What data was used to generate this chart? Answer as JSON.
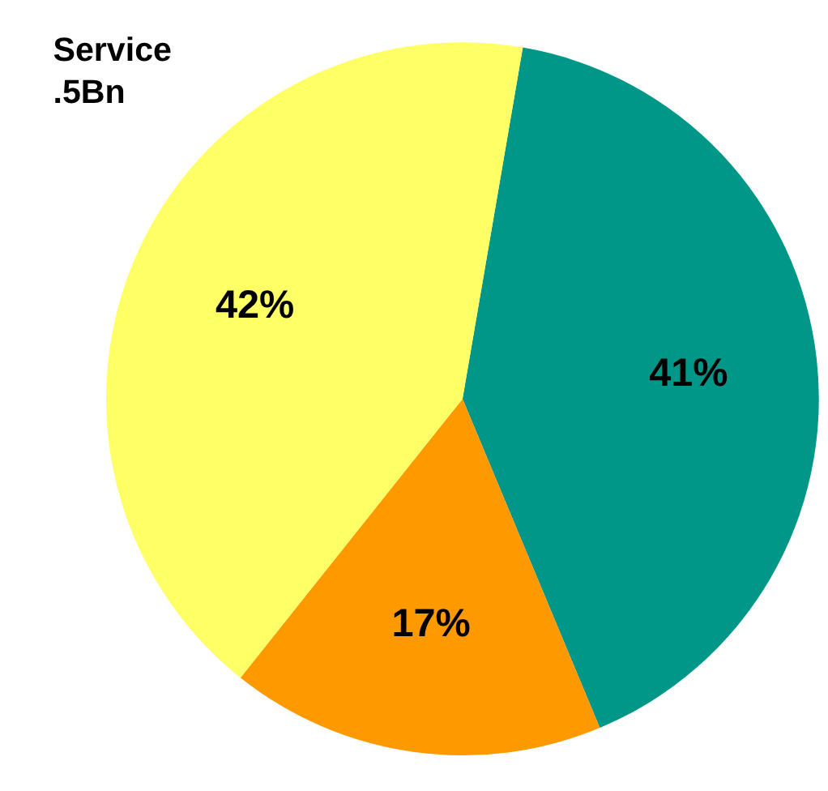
{
  "chart_data": {
    "type": "pie",
    "categories": [
      null,
      null,
      null
    ],
    "values": [
      41,
      17,
      42
    ],
    "colors": [
      "#009688",
      "#ff9900",
      "#ffff66"
    ],
    "value_labels": [
      "41%",
      "17%",
      "42%"
    ],
    "annotations": [
      "Service",
      ".5Bn"
    ],
    "legend": false
  }
}
